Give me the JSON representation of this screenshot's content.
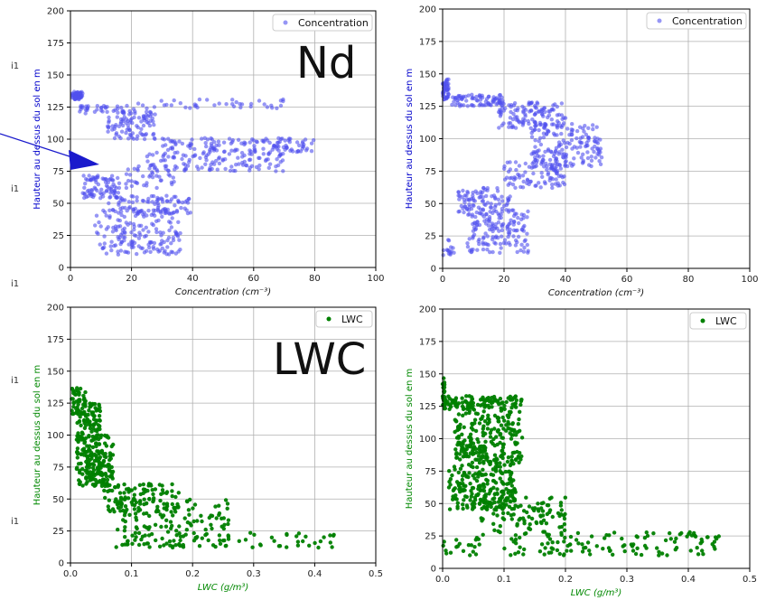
{
  "annotations": {
    "nd_label": "Nd",
    "lwc_label": "LWC",
    "left_fragments": [
      "i1",
      "i1",
      "i1",
      "i1",
      "i1"
    ]
  },
  "chart_data": [
    {
      "id": "top-left",
      "type": "scatter",
      "xlabel": "Concentration  (cm⁻³)",
      "ylabel": "Hauteur au dessus du sol en m",
      "xlim": [
        0,
        100
      ],
      "ylim": [
        0,
        200
      ],
      "xticks": [
        "0",
        "20",
        "40",
        "60",
        "80",
        "100"
      ],
      "yticks": [
        "0",
        "25",
        "50",
        "75",
        "100",
        "125",
        "150",
        "175",
        "200"
      ],
      "grid": true,
      "legend": "top-right",
      "label_color": "#0000cc",
      "series": [
        {
          "name": "Concentration",
          "color": "#5050ee",
          "clusters": [
            {
              "x": [
                0.5,
                4
              ],
              "y": [
                131,
                137
              ],
              "n": 60
            },
            {
              "x": [
                3,
                22
              ],
              "y": [
                120,
                126
              ],
              "n": 40
            },
            {
              "x": [
                22,
                70
              ],
              "y": [
                124,
                131
              ],
              "n": 40
            },
            {
              "x": [
                12,
                28
              ],
              "y": [
                100,
                122
              ],
              "n": 90
            },
            {
              "x": [
                30,
                80
              ],
              "y": [
                90,
                101
              ],
              "n": 130
            },
            {
              "x": [
                25,
                70
              ],
              "y": [
                75,
                90
              ],
              "n": 120
            },
            {
              "x": [
                18,
                34
              ],
              "y": [
                62,
                80
              ],
              "n": 40
            },
            {
              "x": [
                4,
                16
              ],
              "y": [
                54,
                72
              ],
              "n": 80
            },
            {
              "x": [
                12,
                40
              ],
              "y": [
                42,
                56
              ],
              "n": 90
            },
            {
              "x": [
                8,
                36
              ],
              "y": [
                10,
                45
              ],
              "n": 170
            }
          ]
        }
      ]
    },
    {
      "id": "top-right",
      "type": "scatter",
      "xlabel": "Concentration  (cm⁻³)",
      "ylabel": "Hauteur au dessus du sol en m",
      "xlim": [
        0,
        100
      ],
      "ylim": [
        0,
        200
      ],
      "xticks": [
        "0",
        "20",
        "40",
        "60",
        "80",
        "100"
      ],
      "yticks": [
        "0",
        "25",
        "50",
        "75",
        "100",
        "125",
        "150",
        "175",
        "200"
      ],
      "grid": true,
      "legend": "top-right",
      "label_color": "#0000cc",
      "series": [
        {
          "name": "Concentration",
          "color": "#5050ee",
          "clusters": [
            {
              "x": [
                0,
                2
              ],
              "y": [
                130,
                146
              ],
              "n": 50
            },
            {
              "x": [
                3,
                20
              ],
              "y": [
                125,
                134
              ],
              "n": 80
            },
            {
              "x": [
                18,
                40
              ],
              "y": [
                108,
                128
              ],
              "n": 120
            },
            {
              "x": [
                28,
                52
              ],
              "y": [
                78,
                112
              ],
              "n": 170
            },
            {
              "x": [
                20,
                40
              ],
              "y": [
                62,
                82
              ],
              "n": 90
            },
            {
              "x": [
                5,
                22
              ],
              "y": [
                42,
                62
              ],
              "n": 90
            },
            {
              "x": [
                8,
                28
              ],
              "y": [
                12,
                45
              ],
              "n": 150
            },
            {
              "x": [
                0,
                5
              ],
              "y": [
                10,
                25
              ],
              "n": 15
            }
          ]
        }
      ]
    },
    {
      "id": "bottom-left",
      "type": "scatter",
      "xlabel": "LWC (g/m³)",
      "ylabel": "Hauteur au dessus du sol en m",
      "xlim": [
        0.0,
        0.5
      ],
      "ylim": [
        0,
        200
      ],
      "xticks": [
        "0.0",
        "0.1",
        "0.2",
        "0.3",
        "0.4",
        "0.5"
      ],
      "yticks": [
        "0",
        "25",
        "50",
        "75",
        "100",
        "125",
        "150",
        "175",
        "200"
      ],
      "grid": true,
      "legend": "top-right",
      "label_color": "#008800",
      "series": [
        {
          "name": "LWC",
          "color": "#008000",
          "clusters": [
            {
              "x": [
                0.0,
                0.025
              ],
              "y": [
                115,
                137
              ],
              "n": 40
            },
            {
              "x": [
                0.01,
                0.05
              ],
              "y": [
                95,
                125
              ],
              "n": 90
            },
            {
              "x": [
                0.01,
                0.07
              ],
              "y": [
                60,
                100
              ],
              "n": 190
            },
            {
              "x": [
                0.05,
                0.18
              ],
              "y": [
                40,
                62
              ],
              "n": 100
            },
            {
              "x": [
                0.07,
                0.26
              ],
              "y": [
                12,
                50
              ],
              "n": 160
            },
            {
              "x": [
                0.25,
                0.45
              ],
              "y": [
                12,
                24
              ],
              "n": 30
            }
          ]
        }
      ]
    },
    {
      "id": "bottom-right",
      "type": "scatter",
      "xlabel": "LWC (g/m³)",
      "ylabel": "Hauteur au dessus du sol en m",
      "xlim": [
        0.0,
        0.5
      ],
      "ylim": [
        0,
        200
      ],
      "xticks": [
        "0.0",
        "0.1",
        "0.2",
        "0.3",
        "0.4",
        "0.5"
      ],
      "yticks": [
        "0",
        "25",
        "50",
        "75",
        "100",
        "125",
        "150",
        "175",
        "200"
      ],
      "grid": true,
      "legend": "top-right",
      "label_color": "#008800",
      "series": [
        {
          "name": "LWC",
          "color": "#008000",
          "clusters": [
            {
              "x": [
                0.0,
                0.004
              ],
              "y": [
                125,
                147
              ],
              "n": 20
            },
            {
              "x": [
                0.0,
                0.13
              ],
              "y": [
                122,
                133
              ],
              "n": 110
            },
            {
              "x": [
                0.02,
                0.13
              ],
              "y": [
                80,
                122
              ],
              "n": 230
            },
            {
              "x": [
                0.01,
                0.12
              ],
              "y": [
                45,
                80
              ],
              "n": 200
            },
            {
              "x": [
                0.06,
                0.2
              ],
              "y": [
                25,
                55
              ],
              "n": 110
            },
            {
              "x": [
                0.1,
                0.45
              ],
              "y": [
                10,
                28
              ],
              "n": 120
            },
            {
              "x": [
                0.0,
                0.06
              ],
              "y": [
                10,
                24
              ],
              "n": 20
            }
          ]
        }
      ]
    }
  ]
}
